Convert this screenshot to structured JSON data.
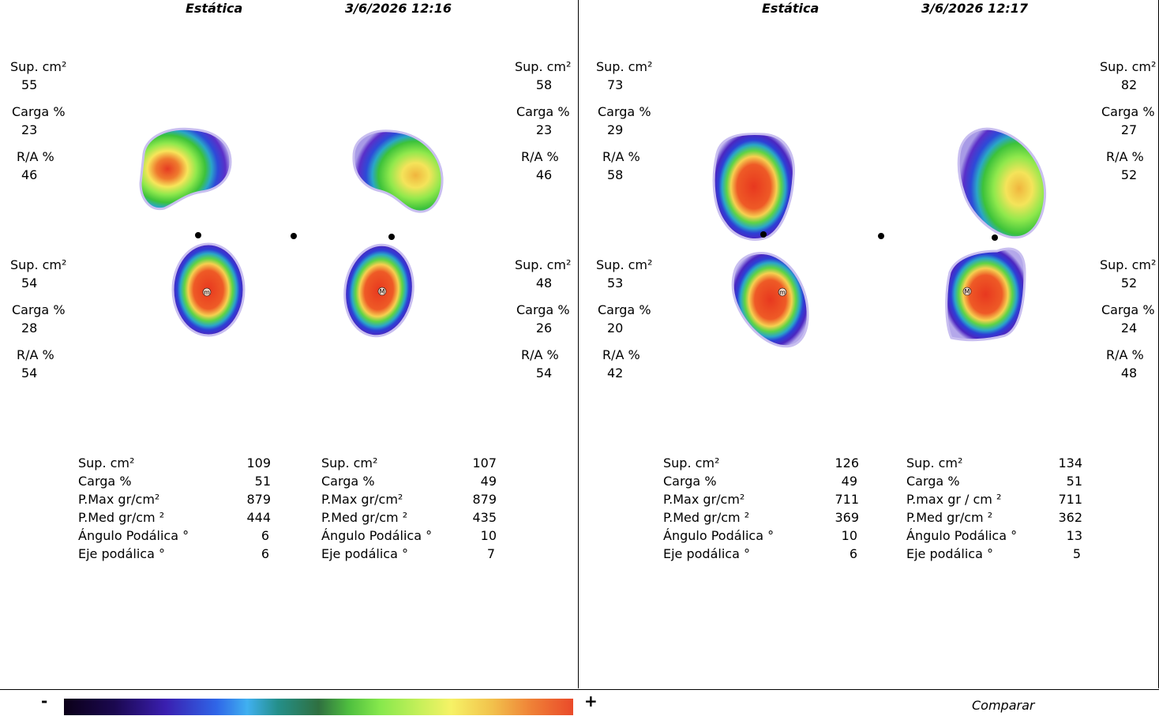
{
  "panels": [
    {
      "mode": "Estática",
      "datetime": "3/6/2026 12:16",
      "zones": {
        "top_left": {
          "area_label": "Sup. cm²",
          "area": "55",
          "load_label": "Carga %",
          "load": "23",
          "ra_label": "R/A %",
          "ra": "46"
        },
        "top_right": {
          "area_label": "Sup. cm²",
          "area": "58",
          "load_label": "Carga %",
          "load": "23",
          "ra_label": "R/A %",
          "ra": "46"
        },
        "bottom_left": {
          "area_label": "Sup. cm²",
          "area": "54",
          "load_label": "Carga %",
          "load": "28",
          "ra_label": "R/A %",
          "ra": "54"
        },
        "bottom_right": {
          "area_label": "Sup. cm²",
          "area": "48",
          "load_label": "Carga %",
          "load": "26",
          "ra_label": "R/A %",
          "ra": "54"
        }
      },
      "foot_markers": {
        "left": "m",
        "right": "M"
      },
      "summary": {
        "left": [
          {
            "label": "Sup. cm²",
            "value": "109"
          },
          {
            "label": "Carga %",
            "value": "51"
          },
          {
            "label": "P.Max gr/cm²",
            "value": "879"
          },
          {
            "label": "P.Med gr/cm ²",
            "value": "444"
          },
          {
            "label": "Ángulo Podálica °",
            "value": "6"
          },
          {
            "label": "Eje podálica °",
            "value": "6"
          }
        ],
        "right": [
          {
            "label": "Sup. cm²",
            "value": "107"
          },
          {
            "label": "Carga %",
            "value": "49"
          },
          {
            "label": "P.Max gr/cm²",
            "value": "879"
          },
          {
            "label": "P.Med gr/cm ²",
            "value": "435"
          },
          {
            "label": "Ángulo Podálica °",
            "value": "10"
          },
          {
            "label": "Eje podálica °",
            "value": "7"
          }
        ]
      }
    },
    {
      "mode": "Estática",
      "datetime": "3/6/2026 12:17",
      "zones": {
        "top_left": {
          "area_label": "Sup. cm²",
          "area": "73",
          "load_label": "Carga %",
          "load": "29",
          "ra_label": "R/A %",
          "ra": "58"
        },
        "top_right": {
          "area_label": "Sup. cm²",
          "area": "82",
          "load_label": "Carga %",
          "load": "27",
          "ra_label": "R/A %",
          "ra": "52"
        },
        "bottom_left": {
          "area_label": "Sup. cm²",
          "area": "53",
          "load_label": "Carga %",
          "load": "20",
          "ra_label": "R/A %",
          "ra": "42"
        },
        "bottom_right": {
          "area_label": "Sup. cm²",
          "area": "52",
          "load_label": "Carga %",
          "load": "24",
          "ra_label": "R/A %",
          "ra": "48"
        }
      },
      "foot_markers": {
        "left": "m",
        "right": "M"
      },
      "summary": {
        "left": [
          {
            "label": "Sup. cm²",
            "value": "126"
          },
          {
            "label": "Carga %",
            "value": "49"
          },
          {
            "label": "P.Max gr/cm²",
            "value": "711"
          },
          {
            "label": "P.Med gr/cm ²",
            "value": "369"
          },
          {
            "label": "Ángulo Podálica °",
            "value": "10"
          },
          {
            "label": "Eje podálica °",
            "value": "6"
          }
        ],
        "right": [
          {
            "label": "Sup. cm²",
            "value": "134"
          },
          {
            "label": "Carga %",
            "value": "51"
          },
          {
            "label": "P.max gr / cm ²",
            "value": "711"
          },
          {
            "label": "P.Med gr/cm ²",
            "value": "362"
          },
          {
            "label": "Ángulo Podálica °",
            "value": "13"
          },
          {
            "label": "Eje podálica °",
            "value": "5"
          }
        ]
      }
    }
  ],
  "scale": {
    "min_symbol": "-",
    "max_symbol": "+"
  },
  "compare_label": "Comparar"
}
